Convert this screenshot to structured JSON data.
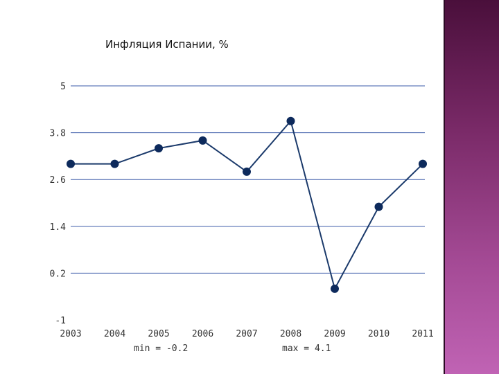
{
  "colors": {
    "line": "#1b3a6b",
    "point": "#0d2a5c",
    "grid": "#3a5aa8",
    "text": "#333333"
  },
  "chart_data": {
    "type": "line",
    "title": "Инфляция Испании, %",
    "x": [
      "2003",
      "2004",
      "2005",
      "2006",
      "2007",
      "2008",
      "2009",
      "2010",
      "2011"
    ],
    "series": [
      {
        "values": [
          3.0,
          3.0,
          3.4,
          3.6,
          2.8,
          4.1,
          -0.2,
          1.9,
          3.0
        ]
      }
    ],
    "ylim": [
      -1,
      5
    ],
    "y_ticks": [
      "5",
      "3.8",
      "2.6",
      "1.4",
      "0.2",
      "-1"
    ],
    "y_tick_values": [
      5,
      3.8,
      2.6,
      1.4,
      0.2,
      -1
    ],
    "grid": true,
    "min_label": "min = -0.2",
    "max_label": "max = 4.1"
  }
}
